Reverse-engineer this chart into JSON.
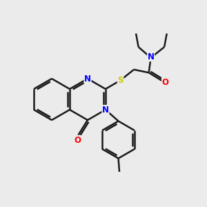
{
  "bg_color": "#ebebeb",
  "bond_color": "#1a1a1a",
  "atom_colors": {
    "N": "#0000ff",
    "O": "#ff0000",
    "S": "#cccc00"
  },
  "bond_width": 1.8,
  "figsize": [
    3.0,
    3.0
  ],
  "dpi": 100,
  "xlim": [
    0,
    10
  ],
  "ylim": [
    0,
    10
  ]
}
